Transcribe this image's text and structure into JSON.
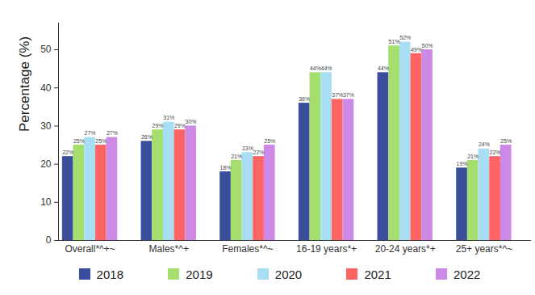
{
  "chart_data": {
    "type": "bar",
    "y_label": "Percentage (%)",
    "categories": [
      "Overall*^+~",
      "Males*^+",
      "Females*^~",
      "16-19 years*+",
      "20-24 years*+",
      "25+ years*^~"
    ],
    "series": [
      {
        "name": "2018",
        "color": "#3b4e9b",
        "values": [
          22,
          26,
          18,
          36,
          44,
          19
        ],
        "value_labels": [
          "22%",
          "26%",
          "18%",
          "36%",
          "44%",
          "19%"
        ]
      },
      {
        "name": "2019",
        "color": "#a4de6c",
        "values": [
          25,
          29,
          21,
          44,
          51,
          21
        ],
        "value_labels": [
          "25%",
          "29%",
          "21%",
          "44%",
          "51%",
          "21%"
        ]
      },
      {
        "name": "2020",
        "color": "#a8def3",
        "values": [
          27,
          31,
          23,
          44,
          52,
          24
        ],
        "value_labels": [
          "27%",
          "31%",
          "23%",
          "44%",
          "52%",
          "24%"
        ]
      },
      {
        "name": "2021",
        "color": "#ff6464",
        "values": [
          25,
          29,
          22,
          37,
          49,
          22
        ],
        "value_labels": [
          "25%",
          "29%",
          "22%",
          "37%",
          "49%",
          "22%"
        ]
      },
      {
        "name": "2022",
        "color": "#cc8ae6",
        "values": [
          27,
          30,
          25,
          37,
          50,
          25
        ],
        "value_labels": [
          "27%",
          "30%",
          "25%",
          "37%",
          "50%",
          "25%"
        ]
      }
    ],
    "ylim": [
      0,
      57
    ],
    "yticks": [
      0,
      10,
      20,
      30,
      40,
      50
    ],
    "grid": false,
    "data_labels": true,
    "legend": "bottom"
  }
}
